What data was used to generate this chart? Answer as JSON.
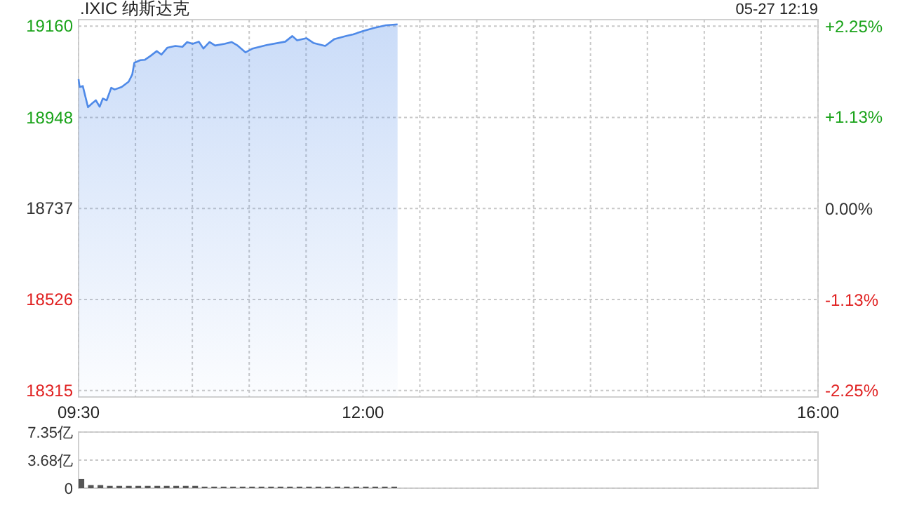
{
  "chart_data": [
    {
      "type": "area",
      "title": ".IXIC 纳斯达克",
      "annotations": [
        "05-27 12:19"
      ],
      "color": "#4f8ae8",
      "grid": true,
      "x": [
        9.5,
        9.509,
        9.537,
        9.583,
        9.62,
        9.652,
        9.685,
        9.713,
        9.747,
        9.787,
        9.817,
        9.879,
        9.94,
        9.972,
        9.99,
        10.043,
        10.084,
        10.133,
        10.187,
        10.228,
        10.281,
        10.351,
        10.413,
        10.454,
        10.503,
        10.557,
        10.598,
        10.651,
        10.7,
        10.783,
        10.845,
        10.898,
        10.968,
        11.03,
        11.153,
        11.317,
        11.379,
        11.421,
        11.502,
        11.564,
        11.668,
        11.749,
        11.853,
        11.914,
        11.996,
        12.099,
        12.202,
        12.304
      ],
      "values": [
        19037,
        19019,
        19021,
        18972,
        18981,
        18988,
        18973,
        18992,
        18988,
        19017,
        19013,
        19019,
        19031,
        19048,
        19075,
        19081,
        19082,
        19091,
        19102,
        19094,
        19110,
        19114,
        19112,
        19123,
        19119,
        19124,
        19108,
        19123,
        19115,
        19119,
        19123,
        19115,
        19099,
        19108,
        19116,
        19124,
        19137,
        19127,
        19132,
        19121,
        19114,
        19130,
        19137,
        19141,
        19148,
        19156,
        19162,
        19164
      ],
      "xlim": [
        9.5,
        16
      ],
      "xticks": [
        {
          "value": 9.5,
          "label": "09:30"
        },
        {
          "value": 10,
          "label": null
        },
        {
          "value": 10.5,
          "label": null
        },
        {
          "value": 11,
          "label": null
        },
        {
          "value": 11.5,
          "label": null
        },
        {
          "value": 12,
          "label": "12:00"
        },
        {
          "value": 12.5,
          "label": null
        },
        {
          "value": 13,
          "label": null
        },
        {
          "value": 13.5,
          "label": null
        },
        {
          "value": 14,
          "label": null
        },
        {
          "value": 14.5,
          "label": null
        },
        {
          "value": 15,
          "label": null
        },
        {
          "value": 15.5,
          "label": null
        },
        {
          "value": 16,
          "label": "16:00"
        }
      ],
      "ylim": [
        18300,
        19175
      ],
      "yticks": [
        18315,
        18526,
        18737,
        18948,
        19160
      ],
      "y2lim": [
        -2.33,
        2.34
      ],
      "y2ticks": [
        {
          "value": -2.25,
          "label": "-2.25%"
        },
        {
          "value": -1.13,
          "label": "-1.13%"
        },
        {
          "value": 0,
          "label": "0.00%"
        },
        {
          "value": 1.13,
          "label": "+1.13%"
        },
        {
          "value": 2.25,
          "label": "+2.25%"
        }
      ]
    },
    {
      "type": "bar",
      "color": "#555555",
      "grid": "y",
      "tick_labels": "y",
      "x": [
        9.5,
        9.583,
        9.667,
        9.75,
        9.833,
        9.917,
        10,
        10.083,
        10.167,
        10.25,
        10.333,
        10.417,
        10.5,
        10.583,
        10.667,
        10.75,
        10.833,
        10.917,
        11,
        11.083,
        11.167,
        11.25,
        11.333,
        11.417,
        11.5,
        11.583,
        11.667,
        11.75,
        11.833,
        11.917,
        12,
        12.083,
        12.167,
        12.25
      ],
      "values": [
        1.2,
        0.4,
        0.4,
        0.3,
        0.3,
        0.3,
        0.3,
        0.3,
        0.3,
        0.3,
        0.3,
        0.3,
        0.3,
        0.2,
        0.2,
        0.2,
        0.2,
        0.2,
        0.2,
        0.2,
        0.2,
        0.2,
        0.2,
        0.2,
        0.2,
        0.2,
        0.2,
        0.2,
        0.2,
        0.2,
        0.2,
        0.2,
        0.2,
        0.2
      ],
      "xlim": [
        9.5,
        16
      ],
      "ylim": [
        0,
        7.35
      ],
      "yticks": [
        0,
        {
          "value": 3.68,
          "label": "3.68亿"
        },
        {
          "value": 7.35,
          "label": "7.35亿"
        }
      ]
    }
  ]
}
